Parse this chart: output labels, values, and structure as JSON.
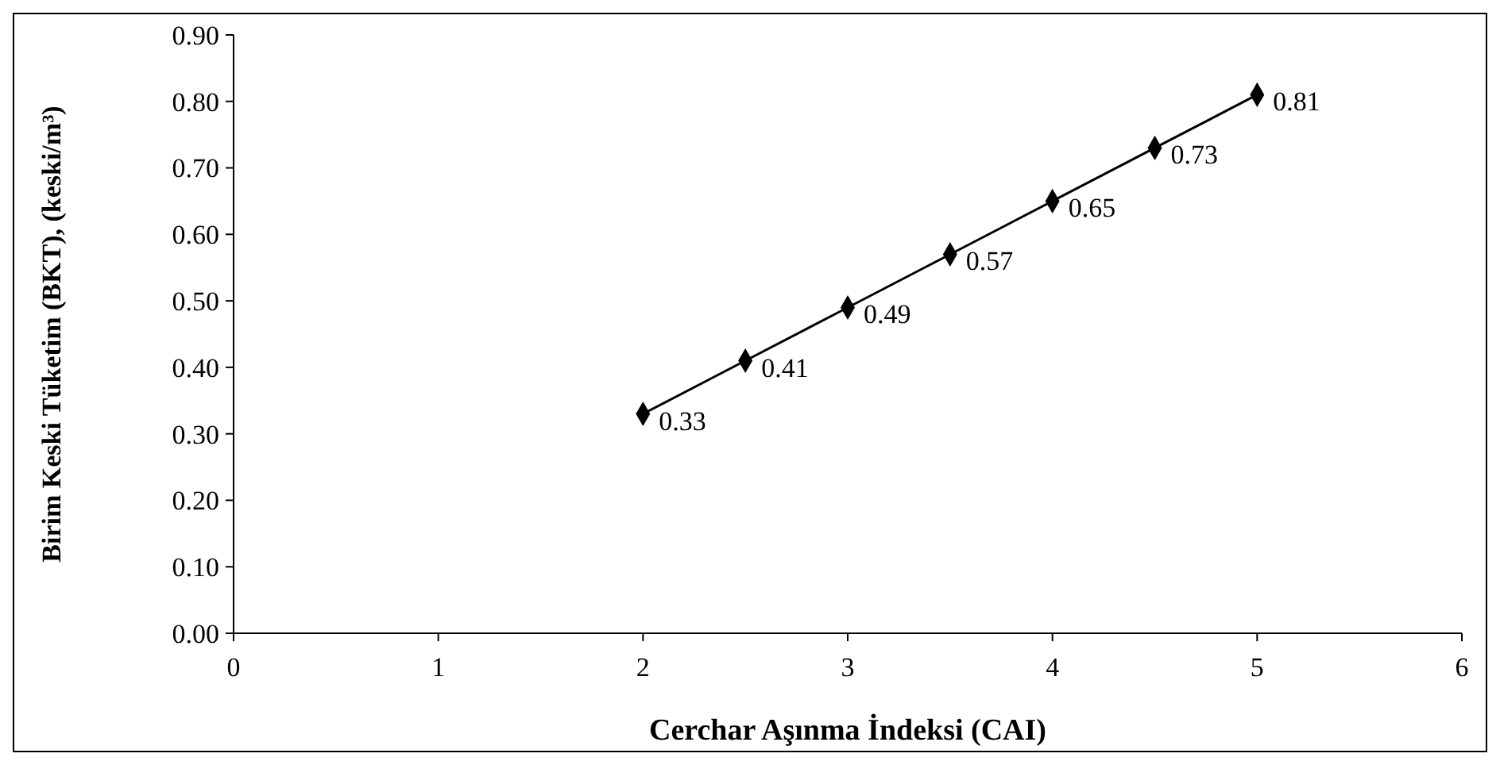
{
  "chart_data": {
    "type": "line",
    "xlabel": "Cerchar Aşınma İndeksi (CAI)",
    "ylabel": "Birim Keski Tüketim (BKT), (keski/m³)",
    "x": [
      2,
      2.5,
      3,
      3.5,
      4,
      4.5,
      5
    ],
    "series": [
      {
        "color": "#000000",
        "values": [
          0.33,
          0.41,
          0.49,
          0.57,
          0.65,
          0.73,
          0.81
        ]
      }
    ],
    "xlim": [
      0,
      6
    ],
    "xticks": [
      0,
      1,
      2,
      3,
      4,
      5,
      6
    ],
    "ylim": [
      0,
      0.9
    ],
    "yticks": [
      {
        "value": 0,
        "label": "0.00"
      },
      {
        "value": 0.1,
        "label": "0.10"
      },
      {
        "value": 0.2,
        "label": "0.20"
      },
      {
        "value": 0.3,
        "label": "0.30"
      },
      {
        "value": 0.4,
        "label": "0.40"
      },
      {
        "value": 0.5,
        "label": "0.50"
      },
      {
        "value": 0.6,
        "label": "0.60"
      },
      {
        "value": 0.7,
        "label": "0.70"
      },
      {
        "value": 0.8,
        "label": "0.80"
      },
      {
        "value": 0.9,
        "label": "0.90"
      }
    ],
    "marker": "diamond",
    "line_style": "solid",
    "data_labels": true,
    "grid": false
  }
}
